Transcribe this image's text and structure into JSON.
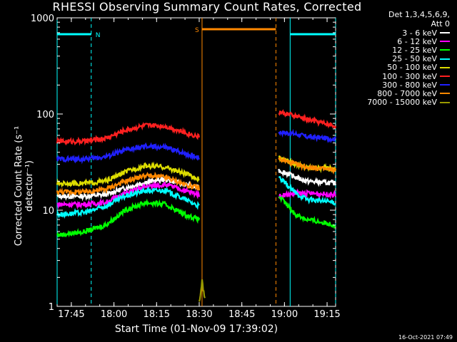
{
  "chart_data": {
    "type": "line",
    "title": "RHESSI Observing Summary Count Rates, Corrected",
    "xlabel": "Start Time (01-Nov-09 17:39:02)",
    "ylabel": "Corrected Count Rate (s⁻¹ detector⁻¹)",
    "y_scale": "log",
    "ylim": [
      1,
      1000
    ],
    "xlim_minutes_after_1740": [
      0,
      98
    ],
    "x_tick_labels": [
      "17:45",
      "18:00",
      "18:15",
      "18:30",
      "18:45",
      "19:00",
      "19:15"
    ],
    "x_tick_minutes": [
      5,
      20,
      35,
      50,
      65,
      80,
      95
    ],
    "y_tick_labels": [
      "1",
      "10",
      "100",
      "1000"
    ],
    "y_tick_values": [
      1,
      10,
      100,
      1000
    ],
    "legend_header": [
      "Det 1,3,4,5,6,9,",
      "Att 0"
    ],
    "series": [
      {
        "name": "3 - 6 keV",
        "color": "#ffffff",
        "x": [
          0,
          10,
          17,
          24,
          31,
          38,
          45,
          50,
          74,
          78,
          84,
          88,
          98
        ],
        "y": [
          14,
          14,
          14.5,
          17,
          19.5,
          21,
          18.5,
          17,
          null,
          26,
          22,
          20,
          19
        ]
      },
      {
        "name": "6 - 12 keV",
        "color": "#ff00ff",
        "x": [
          0,
          10,
          17,
          24,
          31,
          38,
          45,
          50,
          74,
          78,
          84,
          88,
          98
        ],
        "y": [
          11.5,
          11.5,
          12,
          15,
          17.5,
          18.5,
          16,
          14.5,
          null,
          14,
          15,
          15,
          14.5
        ]
      },
      {
        "name": "12 - 25 keV",
        "color": "#00ff00",
        "x": [
          0,
          10,
          17,
          24,
          31,
          38,
          45,
          50,
          74,
          78,
          84,
          88,
          98
        ],
        "y": [
          5.5,
          6,
          7,
          10,
          12,
          11.5,
          9,
          8,
          null,
          14,
          9,
          8,
          7
        ]
      },
      {
        "name": "25 - 50 keV",
        "color": "#00ffff",
        "x": [
          0,
          10,
          17,
          24,
          31,
          38,
          45,
          50,
          74,
          78,
          84,
          88,
          98
        ],
        "y": [
          9,
          9.5,
          11,
          14,
          16,
          16,
          13,
          11,
          null,
          22,
          15,
          13,
          12
        ]
      },
      {
        "name": "50 - 100 keV",
        "color": "#dddd00",
        "x": [
          0,
          10,
          17,
          24,
          31,
          38,
          45,
          50,
          74,
          78,
          84,
          88,
          98
        ],
        "y": [
          19,
          19,
          20,
          25,
          29,
          28,
          24,
          21,
          null,
          35,
          30,
          28,
          27
        ]
      },
      {
        "name": "100 - 300 keV",
        "color": "#ff2020",
        "x": [
          0,
          10,
          17,
          24,
          31,
          38,
          45,
          50,
          74,
          78,
          84,
          88,
          98
        ],
        "y": [
          52,
          52,
          56,
          68,
          76,
          75,
          64,
          58,
          null,
          105,
          95,
          88,
          75
        ]
      },
      {
        "name": "300 - 800 keV",
        "color": "#2020ff",
        "x": [
          0,
          10,
          17,
          24,
          31,
          38,
          45,
          50,
          74,
          78,
          84,
          88,
          98
        ],
        "y": [
          34,
          34,
          36,
          42,
          46,
          45,
          39,
          35,
          null,
          65,
          62,
          58,
          55
        ]
      },
      {
        "name": "800 - 7000 keV",
        "color": "#ff8800",
        "x": [
          0,
          10,
          17,
          24,
          31,
          38,
          45,
          50,
          74,
          78,
          84,
          88,
          98
        ],
        "y": [
          15.5,
          15.5,
          16.5,
          20,
          23,
          22,
          18.5,
          17,
          null,
          34,
          30,
          28,
          26
        ]
      },
      {
        "name": "7000 - 15000 keV",
        "color": "#999900",
        "x": [
          50,
          51,
          52
        ],
        "y": [
          1.1,
          1.8,
          1.2
        ]
      }
    ],
    "flag_bars": [
      {
        "label": "N",
        "color": "#00ffff",
        "segments": [
          [
            0,
            12
          ],
          [
            82,
            98
          ]
        ]
      },
      {
        "label": "S",
        "color": "#ff8800",
        "segments": [
          [
            51,
            77
          ]
        ]
      }
    ],
    "vertical_lines": [
      {
        "color": "#00ffff",
        "style": "solid",
        "x": 0
      },
      {
        "color": "#00ffff",
        "style": "dashed",
        "x": 12
      },
      {
        "color": "#ff8800",
        "style": "solid",
        "x": 51
      },
      {
        "color": "#00ffff",
        "style": "solid",
        "x": 82
      },
      {
        "color": "#ff8800",
        "style": "dashed",
        "x": 77
      },
      {
        "color": "#00ffff",
        "style": "dashed",
        "x": 98
      }
    ],
    "grid": false,
    "legend_position": "top-right"
  },
  "timestamp": "16-Oct-2021 07:49"
}
